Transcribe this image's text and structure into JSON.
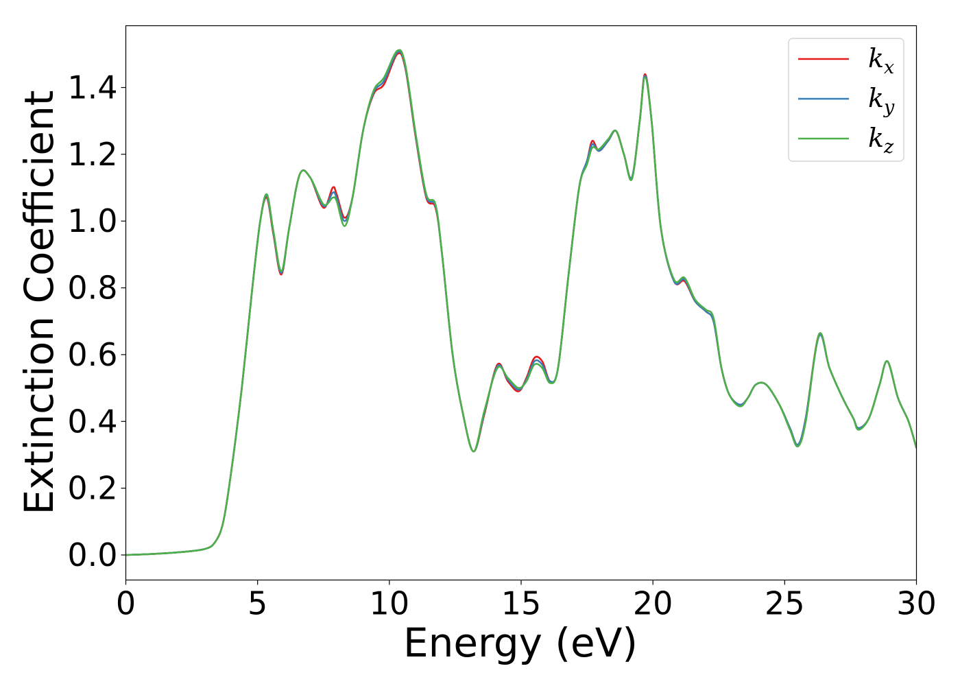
{
  "chart_data": {
    "type": "line",
    "xlabel": "Energy (eV)",
    "ylabel": "Extinction Coefficient",
    "xlim": [
      0,
      30
    ],
    "ylim": [
      -0.075,
      1.585
    ],
    "xticks": [
      0,
      5,
      10,
      15,
      20,
      25,
      30
    ],
    "xtick_labels": [
      "0",
      "5",
      "10",
      "15",
      "20",
      "25",
      "30"
    ],
    "yticks": [
      0.0,
      0.2,
      0.4,
      0.6,
      0.8,
      1.0,
      1.2,
      1.4
    ],
    "ytick_labels": [
      "0.0",
      "0.2",
      "0.4",
      "0.6",
      "0.8",
      "1.0",
      "1.2",
      "1.4"
    ],
    "grid": false,
    "legend_position": "top-right",
    "series": [
      {
        "name": "k_x",
        "legend_main": "k",
        "legend_sub": "x",
        "color": "#e41a1c",
        "points": [
          [
            0,
            0.0
          ],
          [
            1,
            0.003
          ],
          [
            2,
            0.008
          ],
          [
            3,
            0.018
          ],
          [
            3.4,
            0.04
          ],
          [
            3.7,
            0.1
          ],
          [
            4,
            0.25
          ],
          [
            4.4,
            0.5
          ],
          [
            4.8,
            0.8
          ],
          [
            5.1,
            1.0
          ],
          [
            5.35,
            1.07
          ],
          [
            5.6,
            0.96
          ],
          [
            5.9,
            0.84
          ],
          [
            6.2,
            0.98
          ],
          [
            6.6,
            1.14
          ],
          [
            7.0,
            1.13
          ],
          [
            7.5,
            1.04
          ],
          [
            7.85,
            1.1
          ],
          [
            8.0,
            1.08
          ],
          [
            8.3,
            1.01
          ],
          [
            8.6,
            1.07
          ],
          [
            9.0,
            1.27
          ],
          [
            9.4,
            1.38
          ],
          [
            9.8,
            1.41
          ],
          [
            10.3,
            1.5
          ],
          [
            10.6,
            1.46
          ],
          [
            11.0,
            1.25
          ],
          [
            11.4,
            1.07
          ],
          [
            11.75,
            1.04
          ],
          [
            12.0,
            0.9
          ],
          [
            12.4,
            0.6
          ],
          [
            12.8,
            0.42
          ],
          [
            13.2,
            0.31
          ],
          [
            13.6,
            0.42
          ],
          [
            14.1,
            0.57
          ],
          [
            14.5,
            0.52
          ],
          [
            14.9,
            0.49
          ],
          [
            15.2,
            0.53
          ],
          [
            15.5,
            0.59
          ],
          [
            15.8,
            0.58
          ],
          [
            16.1,
            0.52
          ],
          [
            16.4,
            0.56
          ],
          [
            16.8,
            0.84
          ],
          [
            17.2,
            1.1
          ],
          [
            17.5,
            1.18
          ],
          [
            17.7,
            1.24
          ],
          [
            17.95,
            1.21
          ],
          [
            18.3,
            1.24
          ],
          [
            18.6,
            1.27
          ],
          [
            18.9,
            1.2
          ],
          [
            19.2,
            1.13
          ],
          [
            19.5,
            1.3
          ],
          [
            19.7,
            1.44
          ],
          [
            19.95,
            1.3
          ],
          [
            20.3,
            0.98
          ],
          [
            20.8,
            0.82
          ],
          [
            21.2,
            0.82
          ],
          [
            21.6,
            0.76
          ],
          [
            22.0,
            0.73
          ],
          [
            22.3,
            0.7
          ],
          [
            22.6,
            0.56
          ],
          [
            22.9,
            0.48
          ],
          [
            23.3,
            0.45
          ],
          [
            23.6,
            0.47
          ],
          [
            23.9,
            0.51
          ],
          [
            24.3,
            0.51
          ],
          [
            24.8,
            0.45
          ],
          [
            25.2,
            0.38
          ],
          [
            25.5,
            0.33
          ],
          [
            25.8,
            0.41
          ],
          [
            26.3,
            0.66
          ],
          [
            26.7,
            0.56
          ],
          [
            27.2,
            0.47
          ],
          [
            27.6,
            0.41
          ],
          [
            27.8,
            0.38
          ],
          [
            28.2,
            0.41
          ],
          [
            28.6,
            0.51
          ],
          [
            28.9,
            0.58
          ],
          [
            29.3,
            0.47
          ],
          [
            29.7,
            0.4
          ],
          [
            30,
            0.32
          ]
        ]
      },
      {
        "name": "k_y",
        "legend_main": "k",
        "legend_sub": "y",
        "color": "#377eb8",
        "points": [
          [
            0,
            0.0
          ],
          [
            1,
            0.003
          ],
          [
            2,
            0.008
          ],
          [
            3,
            0.018
          ],
          [
            3.4,
            0.04
          ],
          [
            3.7,
            0.1
          ],
          [
            4,
            0.25
          ],
          [
            4.4,
            0.5
          ],
          [
            4.8,
            0.8
          ],
          [
            5.1,
            1.0
          ],
          [
            5.35,
            1.075
          ],
          [
            5.6,
            0.965
          ],
          [
            5.9,
            0.845
          ],
          [
            6.2,
            0.98
          ],
          [
            6.6,
            1.14
          ],
          [
            7.0,
            1.13
          ],
          [
            7.5,
            1.045
          ],
          [
            7.85,
            1.085
          ],
          [
            8.0,
            1.07
          ],
          [
            8.3,
            1.0
          ],
          [
            8.6,
            1.07
          ],
          [
            9.0,
            1.27
          ],
          [
            9.4,
            1.385
          ],
          [
            9.8,
            1.42
          ],
          [
            10.3,
            1.505
          ],
          [
            10.6,
            1.465
          ],
          [
            11.0,
            1.255
          ],
          [
            11.4,
            1.075
          ],
          [
            11.75,
            1.045
          ],
          [
            12.0,
            0.9
          ],
          [
            12.4,
            0.6
          ],
          [
            12.8,
            0.42
          ],
          [
            13.2,
            0.31
          ],
          [
            13.6,
            0.425
          ],
          [
            14.1,
            0.565
          ],
          [
            14.5,
            0.525
          ],
          [
            14.9,
            0.495
          ],
          [
            15.2,
            0.525
          ],
          [
            15.5,
            0.58
          ],
          [
            15.8,
            0.57
          ],
          [
            16.1,
            0.52
          ],
          [
            16.4,
            0.56
          ],
          [
            16.8,
            0.84
          ],
          [
            17.2,
            1.1
          ],
          [
            17.5,
            1.18
          ],
          [
            17.7,
            1.23
          ],
          [
            17.95,
            1.21
          ],
          [
            18.3,
            1.24
          ],
          [
            18.6,
            1.27
          ],
          [
            18.9,
            1.2
          ],
          [
            19.2,
            1.13
          ],
          [
            19.5,
            1.3
          ],
          [
            19.7,
            1.435
          ],
          [
            19.95,
            1.3
          ],
          [
            20.3,
            0.98
          ],
          [
            20.8,
            0.82
          ],
          [
            21.2,
            0.825
          ],
          [
            21.6,
            0.76
          ],
          [
            22.0,
            0.73
          ],
          [
            22.3,
            0.7
          ],
          [
            22.6,
            0.56
          ],
          [
            22.9,
            0.48
          ],
          [
            23.3,
            0.45
          ],
          [
            23.6,
            0.47
          ],
          [
            23.9,
            0.51
          ],
          [
            24.3,
            0.51
          ],
          [
            24.8,
            0.45
          ],
          [
            25.2,
            0.38
          ],
          [
            25.5,
            0.33
          ],
          [
            25.8,
            0.41
          ],
          [
            26.3,
            0.655
          ],
          [
            26.7,
            0.56
          ],
          [
            27.2,
            0.47
          ],
          [
            27.6,
            0.41
          ],
          [
            27.8,
            0.38
          ],
          [
            28.2,
            0.41
          ],
          [
            28.6,
            0.51
          ],
          [
            28.9,
            0.58
          ],
          [
            29.3,
            0.47
          ],
          [
            29.7,
            0.4
          ],
          [
            30,
            0.32
          ]
        ]
      },
      {
        "name": "k_z",
        "legend_main": "k",
        "legend_sub": "z",
        "color": "#4daf4a",
        "points": [
          [
            0,
            0.0
          ],
          [
            1,
            0.003
          ],
          [
            2,
            0.008
          ],
          [
            3,
            0.018
          ],
          [
            3.4,
            0.04
          ],
          [
            3.7,
            0.1
          ],
          [
            4,
            0.25
          ],
          [
            4.4,
            0.5
          ],
          [
            4.8,
            0.8
          ],
          [
            5.1,
            1.0
          ],
          [
            5.35,
            1.08
          ],
          [
            5.6,
            0.97
          ],
          [
            5.9,
            0.85
          ],
          [
            6.2,
            0.98
          ],
          [
            6.6,
            1.14
          ],
          [
            7.0,
            1.13
          ],
          [
            7.5,
            1.05
          ],
          [
            7.85,
            1.07
          ],
          [
            8.0,
            1.06
          ],
          [
            8.3,
            0.985
          ],
          [
            8.6,
            1.07
          ],
          [
            9.0,
            1.27
          ],
          [
            9.4,
            1.39
          ],
          [
            9.8,
            1.43
          ],
          [
            10.3,
            1.51
          ],
          [
            10.6,
            1.47
          ],
          [
            11.0,
            1.26
          ],
          [
            11.4,
            1.08
          ],
          [
            11.75,
            1.05
          ],
          [
            12.0,
            0.9
          ],
          [
            12.4,
            0.6
          ],
          [
            12.8,
            0.42
          ],
          [
            13.2,
            0.31
          ],
          [
            13.6,
            0.43
          ],
          [
            14.1,
            0.56
          ],
          [
            14.5,
            0.53
          ],
          [
            14.9,
            0.5
          ],
          [
            15.2,
            0.52
          ],
          [
            15.5,
            0.57
          ],
          [
            15.8,
            0.56
          ],
          [
            16.1,
            0.515
          ],
          [
            16.4,
            0.56
          ],
          [
            16.8,
            0.84
          ],
          [
            17.2,
            1.1
          ],
          [
            17.5,
            1.17
          ],
          [
            17.7,
            1.22
          ],
          [
            17.95,
            1.215
          ],
          [
            18.3,
            1.245
          ],
          [
            18.6,
            1.27
          ],
          [
            18.9,
            1.2
          ],
          [
            19.2,
            1.125
          ],
          [
            19.5,
            1.3
          ],
          [
            19.7,
            1.43
          ],
          [
            19.95,
            1.3
          ],
          [
            20.3,
            0.98
          ],
          [
            20.8,
            0.825
          ],
          [
            21.2,
            0.83
          ],
          [
            21.6,
            0.765
          ],
          [
            22.0,
            0.735
          ],
          [
            22.3,
            0.71
          ],
          [
            22.6,
            0.56
          ],
          [
            22.9,
            0.48
          ],
          [
            23.3,
            0.445
          ],
          [
            23.6,
            0.47
          ],
          [
            23.9,
            0.51
          ],
          [
            24.3,
            0.51
          ],
          [
            24.8,
            0.45
          ],
          [
            25.2,
            0.375
          ],
          [
            25.5,
            0.325
          ],
          [
            25.8,
            0.4
          ],
          [
            26.3,
            0.66
          ],
          [
            26.7,
            0.56
          ],
          [
            27.2,
            0.47
          ],
          [
            27.6,
            0.41
          ],
          [
            27.8,
            0.375
          ],
          [
            28.2,
            0.41
          ],
          [
            28.6,
            0.51
          ],
          [
            28.9,
            0.58
          ],
          [
            29.3,
            0.47
          ],
          [
            29.7,
            0.4
          ],
          [
            30,
            0.32
          ]
        ]
      }
    ]
  }
}
